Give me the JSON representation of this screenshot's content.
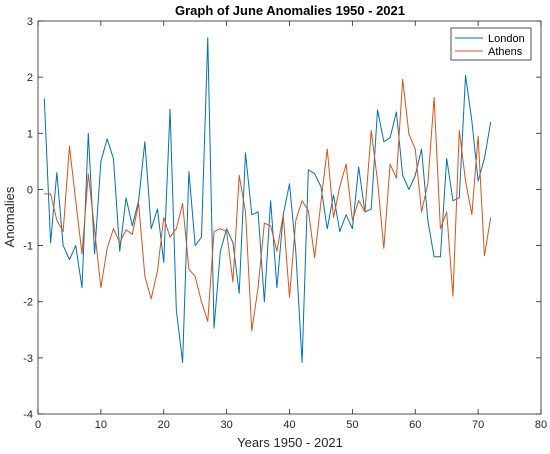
{
  "chart_data": {
    "type": "line",
    "title": "Graph of June Anomalies 1950 - 2021",
    "xlabel": "Years 1950 - 2021",
    "ylabel": "Anomalies",
    "xlim": [
      0,
      80
    ],
    "ylim": [
      -4,
      3
    ],
    "xticks": [
      "0",
      "10",
      "20",
      "30",
      "40",
      "50",
      "60",
      "70",
      "80"
    ],
    "yticks": [
      "-4",
      "-3",
      "-2",
      "-1",
      "0",
      "1",
      "2",
      "3"
    ],
    "grid": false,
    "legend_position": "top-right",
    "x": [
      1,
      2,
      3,
      4,
      5,
      6,
      7,
      8,
      9,
      10,
      11,
      12,
      13,
      14,
      15,
      16,
      17,
      18,
      19,
      20,
      21,
      22,
      23,
      24,
      25,
      26,
      27,
      28,
      29,
      30,
      31,
      32,
      33,
      34,
      35,
      36,
      37,
      38,
      39,
      40,
      41,
      42,
      43,
      44,
      45,
      46,
      47,
      48,
      49,
      50,
      51,
      52,
      53,
      54,
      55,
      56,
      57,
      58,
      59,
      60,
      61,
      62,
      63,
      64,
      65,
      66,
      67,
      68,
      69,
      70,
      71,
      72
    ],
    "series": [
      {
        "name": "London",
        "color": "#0072BD",
        "values": [
          1.62,
          -0.95,
          0.3,
          -1.0,
          -1.25,
          -1.0,
          -1.75,
          1.0,
          -1.15,
          0.5,
          0.9,
          0.55,
          -1.1,
          -0.15,
          -0.65,
          -0.2,
          0.85,
          -0.7,
          -0.35,
          -1.3,
          1.43,
          -2.15,
          -3.08,
          0.32,
          -1.0,
          -0.85,
          2.7,
          -2.47,
          -1.1,
          -0.7,
          -0.95,
          -1.85,
          0.65,
          -0.45,
          -0.4,
          -2.0,
          -0.2,
          -1.75,
          -0.45,
          0.1,
          -1.1,
          -3.08,
          0.35,
          0.28,
          0.05,
          -0.7,
          -0.1,
          -0.75,
          -0.45,
          -0.7,
          0.4,
          -0.4,
          -0.35,
          1.42,
          0.85,
          0.92,
          1.38,
          0.25,
          0.0,
          0.25,
          0.72,
          -0.55,
          -1.2,
          -1.2,
          0.55,
          -0.2,
          -0.15,
          2.03,
          1.22,
          0.15,
          0.55,
          1.2
        ]
      },
      {
        "name": "Athens",
        "color": "#D95319",
        "values": [
          -0.08,
          -0.08,
          -0.55,
          -0.75,
          0.77,
          -0.2,
          -1.15,
          0.28,
          -0.72,
          -1.75,
          -1.05,
          -0.7,
          -0.95,
          -0.72,
          -0.8,
          -0.25,
          -1.55,
          -1.95,
          -1.45,
          -0.5,
          -0.85,
          -0.7,
          -0.25,
          -1.42,
          -1.55,
          -2.0,
          -2.35,
          -0.75,
          -0.7,
          -0.75,
          -1.65,
          0.25,
          -0.4,
          -2.52,
          -1.75,
          -0.6,
          -0.65,
          -1.1,
          -0.45,
          -1.92,
          -0.55,
          -0.2,
          -0.38,
          -1.22,
          -0.22,
          0.72,
          -0.5,
          0.05,
          0.45,
          -0.55,
          -0.2,
          -0.4,
          1.05,
          0.15,
          -1.05,
          0.45,
          0.2,
          1.96,
          0.98,
          0.72,
          -0.4,
          0.1,
          1.64,
          -0.7,
          -0.4,
          -1.9,
          1.05,
          0.15,
          -0.45,
          0.95,
          -1.18,
          -0.5
        ]
      }
    ]
  }
}
